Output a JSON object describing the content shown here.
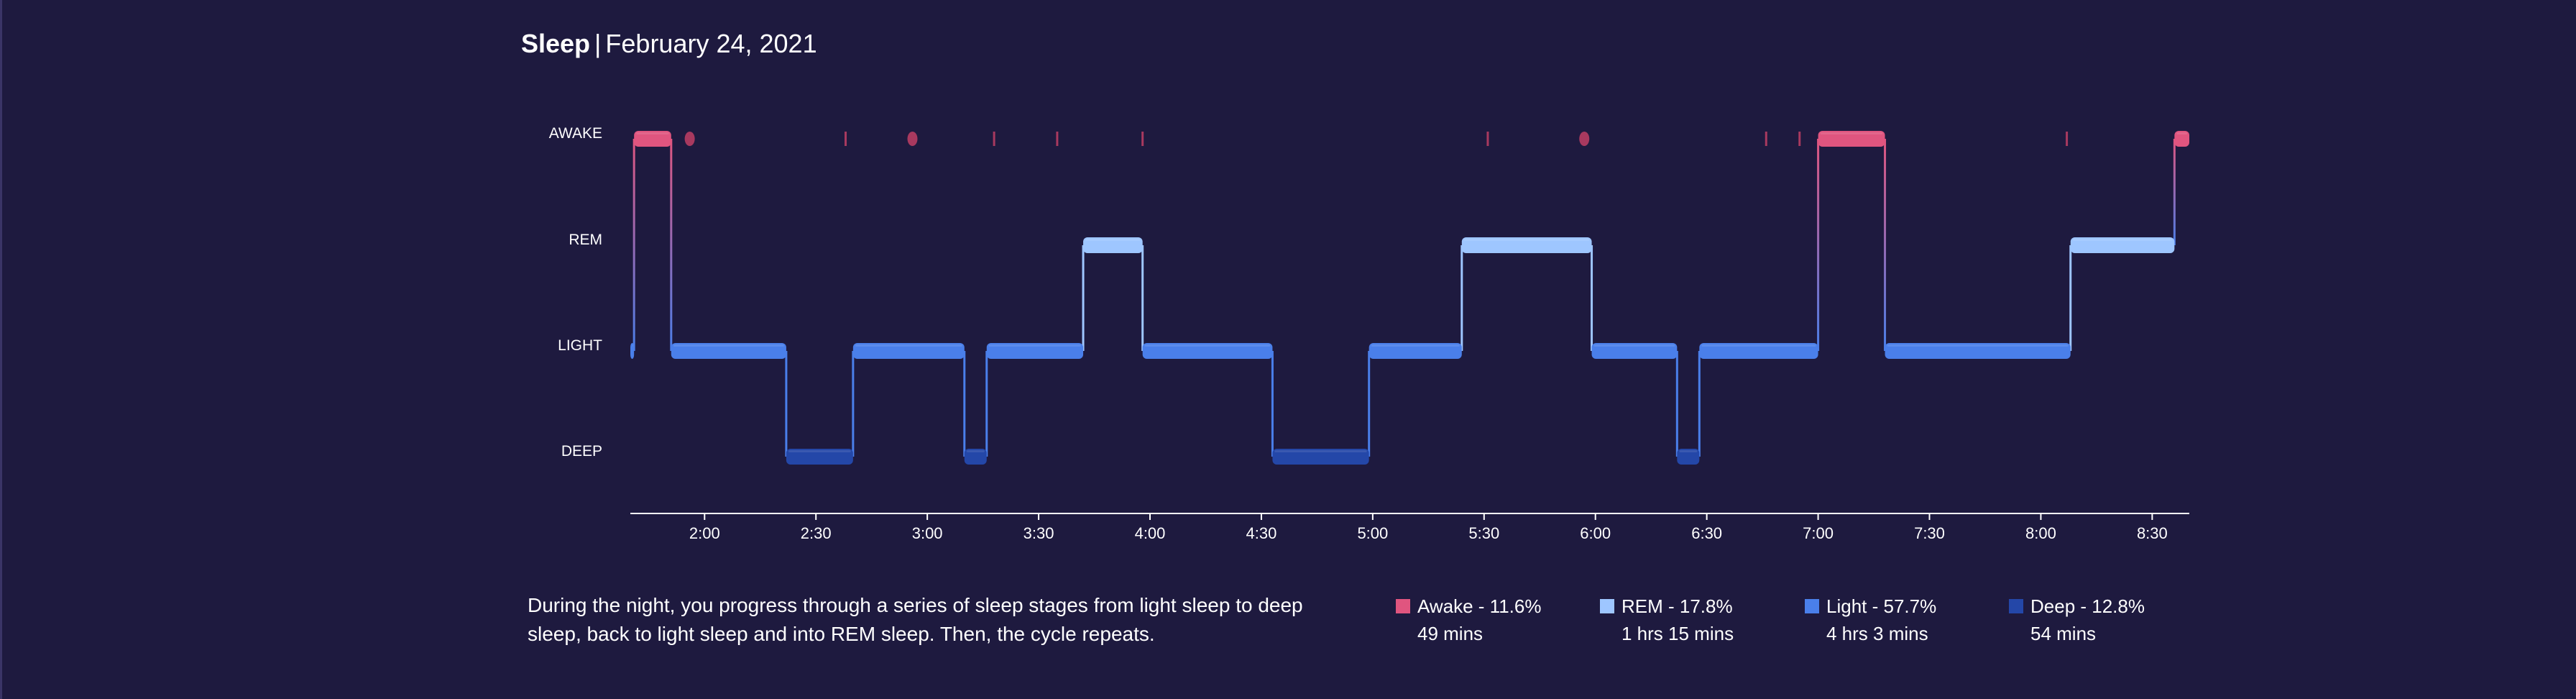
{
  "header": {
    "title": "Sleep",
    "separator": "|",
    "date": "February 24, 2021"
  },
  "description": "During the night, you progress through a series of sleep stages from light sleep to deep sleep, back to light sleep and into REM sleep. Then, the cycle repeats.",
  "colors": {
    "background": "#1e1a3f",
    "awake": "#e0557f",
    "awake_blip": "#a8395f",
    "rem": "#9ec6ff",
    "light": "#4a7fea",
    "deep": "#2447a8",
    "axis": "#ffffff"
  },
  "legend": [
    {
      "key": "awake",
      "label": "Awake - 11.6%",
      "duration": "49 mins"
    },
    {
      "key": "rem",
      "label": "REM - 17.8%",
      "duration": "1 hrs 15 mins"
    },
    {
      "key": "light",
      "label": "Light - 57.7%",
      "duration": "4 hrs 3 mins"
    },
    {
      "key": "deep",
      "label": "Deep - 12.8%",
      "duration": "54 mins"
    }
  ],
  "chart_data": {
    "type": "area",
    "title": "",
    "xlabel": "",
    "ylabel": "",
    "x_unit": "minutes after 1:40",
    "xlim": [
      "1:40",
      "8:40"
    ],
    "x_ticks": [
      "2:00",
      "2:30",
      "3:00",
      "3:30",
      "4:00",
      "4:30",
      "5:00",
      "5:30",
      "6:00",
      "6:30",
      "7:00",
      "7:30",
      "8:00",
      "8:30"
    ],
    "stages": [
      "AWAKE",
      "REM",
      "LIGHT",
      "DEEP"
    ],
    "segments": [
      {
        "stage": "LIGHT",
        "start": "1:40",
        "end": "1:41"
      },
      {
        "stage": "AWAKE",
        "start": "1:41",
        "end": "1:51"
      },
      {
        "stage": "LIGHT",
        "start": "1:51",
        "end": "2:22"
      },
      {
        "stage": "DEEP",
        "start": "2:22",
        "end": "2:40"
      },
      {
        "stage": "LIGHT",
        "start": "2:40",
        "end": "3:10"
      },
      {
        "stage": "DEEP",
        "start": "3:10",
        "end": "3:16"
      },
      {
        "stage": "LIGHT",
        "start": "3:16",
        "end": "3:42"
      },
      {
        "stage": "REM",
        "start": "3:42",
        "end": "3:58"
      },
      {
        "stage": "LIGHT",
        "start": "3:58",
        "end": "4:33"
      },
      {
        "stage": "DEEP",
        "start": "4:33",
        "end": "4:59"
      },
      {
        "stage": "LIGHT",
        "start": "4:59",
        "end": "5:24"
      },
      {
        "stage": "REM",
        "start": "5:24",
        "end": "5:59"
      },
      {
        "stage": "LIGHT",
        "start": "5:59",
        "end": "6:22"
      },
      {
        "stage": "DEEP",
        "start": "6:22",
        "end": "6:28"
      },
      {
        "stage": "LIGHT",
        "start": "6:28",
        "end": "7:00"
      },
      {
        "stage": "AWAKE",
        "start": "7:00",
        "end": "7:18"
      },
      {
        "stage": "LIGHT",
        "start": "7:18",
        "end": "8:08"
      },
      {
        "stage": "REM",
        "start": "8:08",
        "end": "8:36"
      },
      {
        "stage": "AWAKE",
        "start": "8:36",
        "end": "8:40"
      }
    ],
    "awake_blips": [
      {
        "time": "1:56",
        "dot": true
      },
      {
        "time": "2:38",
        "dot": false
      },
      {
        "time": "2:56",
        "dot": true
      },
      {
        "time": "3:18",
        "dot": false
      },
      {
        "time": "3:35",
        "dot": false
      },
      {
        "time": "3:58",
        "dot": false
      },
      {
        "time": "5:31",
        "dot": false
      },
      {
        "time": "5:57",
        "dot": true
      },
      {
        "time": "6:46",
        "dot": false
      },
      {
        "time": "6:55",
        "dot": false
      },
      {
        "time": "8:07",
        "dot": false
      }
    ],
    "grid": false,
    "legend_position": "bottom-right"
  }
}
